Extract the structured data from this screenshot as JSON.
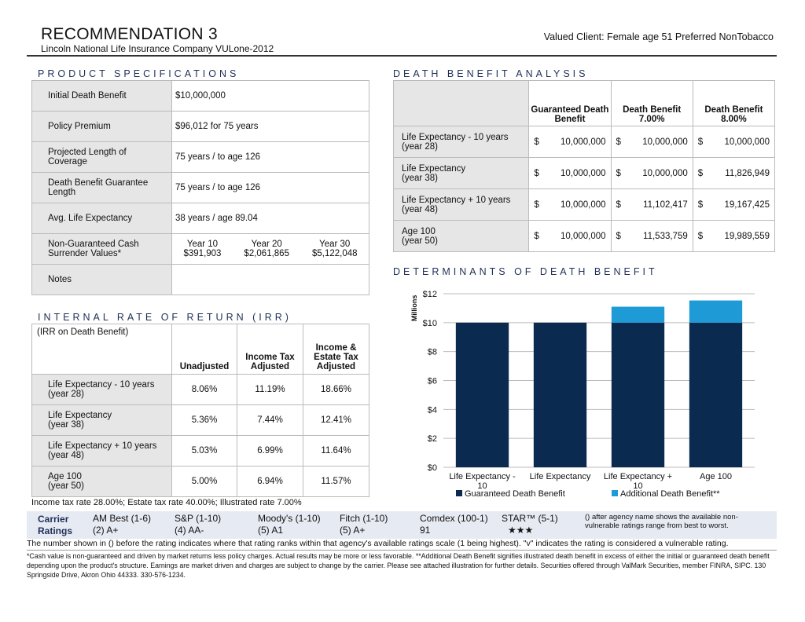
{
  "header": {
    "title": "RECOMMENDATION 3",
    "client": "Valued Client: Female age 51 Preferred NonTobacco",
    "subtitle": "Lincoln National Life Insurance Company VULone-2012"
  },
  "specs": {
    "heading": "PRODUCT SPECIFICATIONS",
    "rows": [
      {
        "label": "Initial Death Benefit",
        "value": "$10,000,000"
      },
      {
        "label": "Policy Premium",
        "value": "$96,012 for 75 years"
      },
      {
        "label": "Projected Length of Coverage",
        "value": "75 years / to age 126"
      },
      {
        "label": "Death Benefit Guarantee Length",
        "value": "75 years / to age 126"
      },
      {
        "label": "Avg. Life Expectancy",
        "value": "38 years / age 89.04"
      }
    ],
    "cash_value": {
      "label": "Non-Guaranteed Cash Surrender Values*",
      "cols": [
        {
          "year": "Year 10",
          "value": "$391,903"
        },
        {
          "year": "Year 20",
          "value": "$2,061,865"
        },
        {
          "year": "Year 30",
          "value": "$5,122,048"
        }
      ]
    },
    "notes_label": "Notes"
  },
  "irr": {
    "heading": "INTERNAL RATE OF RETURN (IRR)",
    "subhead": "(IRR on Death Benefit)",
    "columns": [
      "Unadjusted",
      "Income Tax Adjusted",
      "Income & Estate Tax Adjusted"
    ],
    "rows": [
      {
        "label": "Life Expectancy - 10 years",
        "sub": "(year 28)",
        "values": [
          "8.06%",
          "11.19%",
          "18.66%"
        ]
      },
      {
        "label": "Life Expectancy",
        "sub": "(year 38)",
        "values": [
          "5.36%",
          "7.44%",
          "12.41%"
        ]
      },
      {
        "label": "Life Expectancy + 10 years",
        "sub": "(year 48)",
        "values": [
          "5.03%",
          "6.99%",
          "11.64%"
        ]
      },
      {
        "label": "Age 100",
        "sub": "(year 50)",
        "values": [
          "5.00%",
          "6.94%",
          "11.57%"
        ]
      }
    ],
    "note": "Income tax rate 28.00%; Estate tax rate 40.00%; Illustrated rate 7.00%"
  },
  "dba": {
    "heading": "DEATH BENEFIT ANALYSIS",
    "columns": [
      "Guaranteed Death Benefit",
      "Death Benefit 7.00%",
      "Death Benefit 8.00%"
    ],
    "rows": [
      {
        "label": "Life Expectancy - 10 years",
        "sub": "(year 28)",
        "values": [
          "10,000,000",
          "10,000,000",
          "10,000,000"
        ]
      },
      {
        "label": "Life Expectancy",
        "sub": "(year 38)",
        "values": [
          "10,000,000",
          "10,000,000",
          "11,826,949"
        ]
      },
      {
        "label": "Life Expectancy + 10 years",
        "sub": "(year 48)",
        "values": [
          "10,000,000",
          "11,102,417",
          "19,167,425"
        ]
      },
      {
        "label": "Age 100",
        "sub": "(year 50)",
        "values": [
          "10,000,000",
          "11,533,759",
          "19,989,559"
        ]
      }
    ],
    "currency": "$"
  },
  "determinants_heading": "DETERMINANTS OF DEATH BENEFIT",
  "chart_data": {
    "type": "bar",
    "stacked": true,
    "categories": [
      "Life Expectancy - 10",
      "Life Expectancy",
      "Life Expectancy + 10",
      "Age 100"
    ],
    "series": [
      {
        "name": "Guaranteed Death Benefit",
        "values": [
          10.0,
          10.0,
          10.0,
          10.0
        ],
        "color": "#0b2a4f"
      },
      {
        "name": "Additional Death Benefit**",
        "values": [
          0.0,
          0.0,
          1.102,
          1.534
        ],
        "color": "#1e9bd7"
      }
    ],
    "ylabel": "Millions",
    "ylim": [
      0,
      12
    ],
    "yticks": [
      "$0",
      "$2",
      "$4",
      "$6",
      "$8",
      "$10",
      "$12"
    ],
    "grid": true,
    "legend": "bottom"
  },
  "ratings": {
    "title1": "Carrier",
    "title2": "Ratings",
    "agencies": [
      {
        "name": "AM Best (1-6)",
        "value": "(2) A+"
      },
      {
        "name": "S&P (1-10)",
        "value": "(4) AA-"
      },
      {
        "name": "Moody's (1-10)",
        "value": "(5) A1"
      },
      {
        "name": "Fitch (1-10)",
        "value": "(5) A+"
      },
      {
        "name": "Comdex (100-1)",
        "value": "91"
      },
      {
        "name": "STAR™ (5-1)",
        "value": "★★★"
      }
    ],
    "note": "() after agency name shows the available non-vulnerable ratings range from best to worst."
  },
  "footer": {
    "line1": "The number shown in () before the rating indicates where that rating ranks within that agency's available ratings scale (1 being highest). \"v\" indicates the rating is considered a vulnerable rating.",
    "line2": "*Cash value is non-guaranteed and driven by market returns less policy charges. Actual results may be more or less favorable. **Additional Death Benefit signifies illustrated death benefit in excess of either the initial or guaranteed death benefit depending upon the product's structure. Earnings are market driven and charges are subject to change by the carrier. Please see attached illustration for further details. Securities offered through ValMark Securities, member FINRA, SIPC. 130 Springside Drive, Akron Ohio 44333. 330-576-1234."
  }
}
